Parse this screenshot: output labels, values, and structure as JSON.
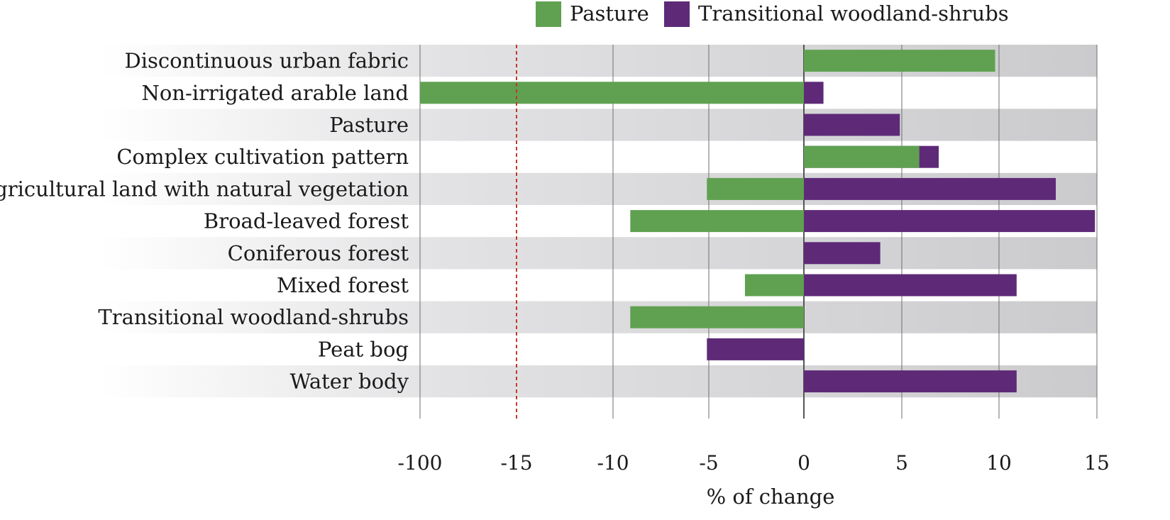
{
  "chart_data": {
    "type": "bar",
    "orientation": "horizontal",
    "xlabel": "% of change",
    "ylabel": "",
    "title": "",
    "categories": [
      "Discontinuous urban fabric",
      "Non-irrigated arable land",
      "Pasture",
      "Complex cultivation pattern",
      "Agricultural land with natural vegetation",
      "Broad-leaved forest",
      "Coniferous forest",
      "Mixed forest",
      "Transitional woodland-shrubs",
      "Peat bog",
      "Water body"
    ],
    "series": [
      {
        "name": "Pasture",
        "color": "#5fa150",
        "values": [
          9.8,
          -100,
          null,
          5.9,
          -5.1,
          -9.1,
          null,
          -3.1,
          -9.1,
          null,
          null
        ]
      },
      {
        "name": "Transitional woodland-shrubs",
        "color": "#5e2a78",
        "values": [
          null,
          1.0,
          4.9,
          6.9,
          12.9,
          14.9,
          3.9,
          10.9,
          null,
          -5.1,
          10.9
        ]
      }
    ],
    "x_ticks": [
      -100,
      -15,
      -10,
      -5,
      0,
      5,
      10,
      15
    ],
    "x_tick_labels": [
      "-100",
      "-15",
      "-10",
      "-5",
      "0",
      "5",
      "10",
      "15"
    ],
    "axis_break": "broken axis between -100 and -15",
    "reference_line": {
      "value": -15,
      "style": "dashed",
      "color": "#c0392b"
    },
    "legend_position": "top",
    "grid": true
  }
}
